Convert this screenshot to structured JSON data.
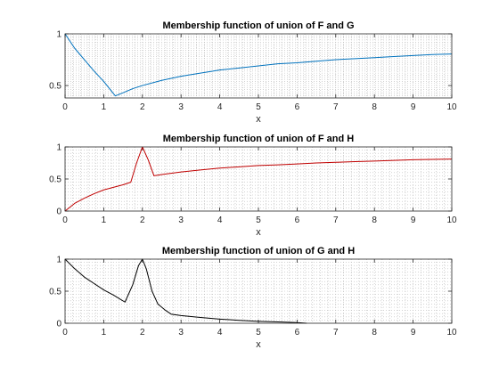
{
  "chart_data": [
    {
      "type": "line",
      "title": "Membership function of union of F and G",
      "xlabel": "x",
      "ylabel": "",
      "xlim": [
        0,
        10
      ],
      "ylim": [
        0.38,
        1.0
      ],
      "xticks": [
        "0",
        "1",
        "2",
        "3",
        "4",
        "5",
        "6",
        "7",
        "8",
        "9",
        "10"
      ],
      "yticks": [
        "0.5",
        "1"
      ],
      "grid": "minor dotted",
      "series": [
        {
          "color": "#0072bd",
          "x": [
            0,
            0.25,
            0.5,
            0.75,
            1.0,
            1.3,
            1.5,
            1.75,
            2.0,
            2.5,
            3.0,
            3.5,
            4.0,
            4.5,
            5.0,
            5.5,
            6.0,
            6.5,
            7.0,
            7.5,
            8.0,
            8.5,
            9.0,
            9.5,
            10.0
          ],
          "y": [
            1.0,
            0.86,
            0.75,
            0.64,
            0.54,
            0.4,
            0.43,
            0.47,
            0.5,
            0.55,
            0.59,
            0.62,
            0.65,
            0.67,
            0.69,
            0.71,
            0.72,
            0.735,
            0.75,
            0.76,
            0.77,
            0.78,
            0.79,
            0.8,
            0.805
          ]
        }
      ]
    },
    {
      "type": "line",
      "title": "Membership function of union of F and H",
      "xlabel": "x",
      "ylabel": "",
      "xlim": [
        0,
        10
      ],
      "ylim": [
        0,
        1
      ],
      "xticks": [
        "0",
        "1",
        "2",
        "3",
        "4",
        "5",
        "6",
        "7",
        "8",
        "9",
        "10"
      ],
      "yticks": [
        "0",
        "0.5",
        "1"
      ],
      "grid": "minor dotted",
      "series": [
        {
          "color": "#c00000",
          "x": [
            0,
            0.25,
            0.5,
            0.75,
            1.0,
            1.25,
            1.5,
            1.7,
            1.85,
            2.0,
            2.15,
            2.3,
            2.5,
            3.0,
            3.5,
            4.0,
            4.5,
            5.0,
            5.5,
            6.0,
            6.5,
            7.0,
            7.5,
            8.0,
            8.5,
            9.0,
            9.5,
            10.0
          ],
          "y": [
            0.0,
            0.12,
            0.2,
            0.27,
            0.33,
            0.37,
            0.41,
            0.45,
            0.75,
            1.0,
            0.8,
            0.55,
            0.57,
            0.61,
            0.64,
            0.67,
            0.69,
            0.71,
            0.72,
            0.735,
            0.75,
            0.76,
            0.77,
            0.78,
            0.79,
            0.8,
            0.805,
            0.81
          ]
        }
      ]
    },
    {
      "type": "line",
      "title": "Membership function of union of G and H",
      "xlabel": "x",
      "ylabel": "",
      "xlim": [
        0,
        10
      ],
      "ylim": [
        0,
        1
      ],
      "xticks": [
        "0",
        "1",
        "2",
        "3",
        "4",
        "5",
        "6",
        "7",
        "8",
        "9",
        "10"
      ],
      "yticks": [
        "0",
        "0.5",
        "1"
      ],
      "grid": "minor dotted",
      "series": [
        {
          "color": "#000000",
          "x": [
            0,
            0.25,
            0.5,
            0.75,
            1.0,
            1.25,
            1.55,
            1.75,
            1.9,
            2.0,
            2.1,
            2.25,
            2.4,
            2.6,
            2.75,
            3.0,
            3.5,
            4.0,
            4.5,
            5.0,
            5.5,
            6.0,
            6.25
          ],
          "y": [
            1.0,
            0.85,
            0.72,
            0.62,
            0.52,
            0.44,
            0.33,
            0.6,
            0.9,
            1.0,
            0.85,
            0.5,
            0.3,
            0.2,
            0.14,
            0.12,
            0.09,
            0.065,
            0.045,
            0.03,
            0.02,
            0.01,
            0.0
          ]
        }
      ]
    }
  ]
}
